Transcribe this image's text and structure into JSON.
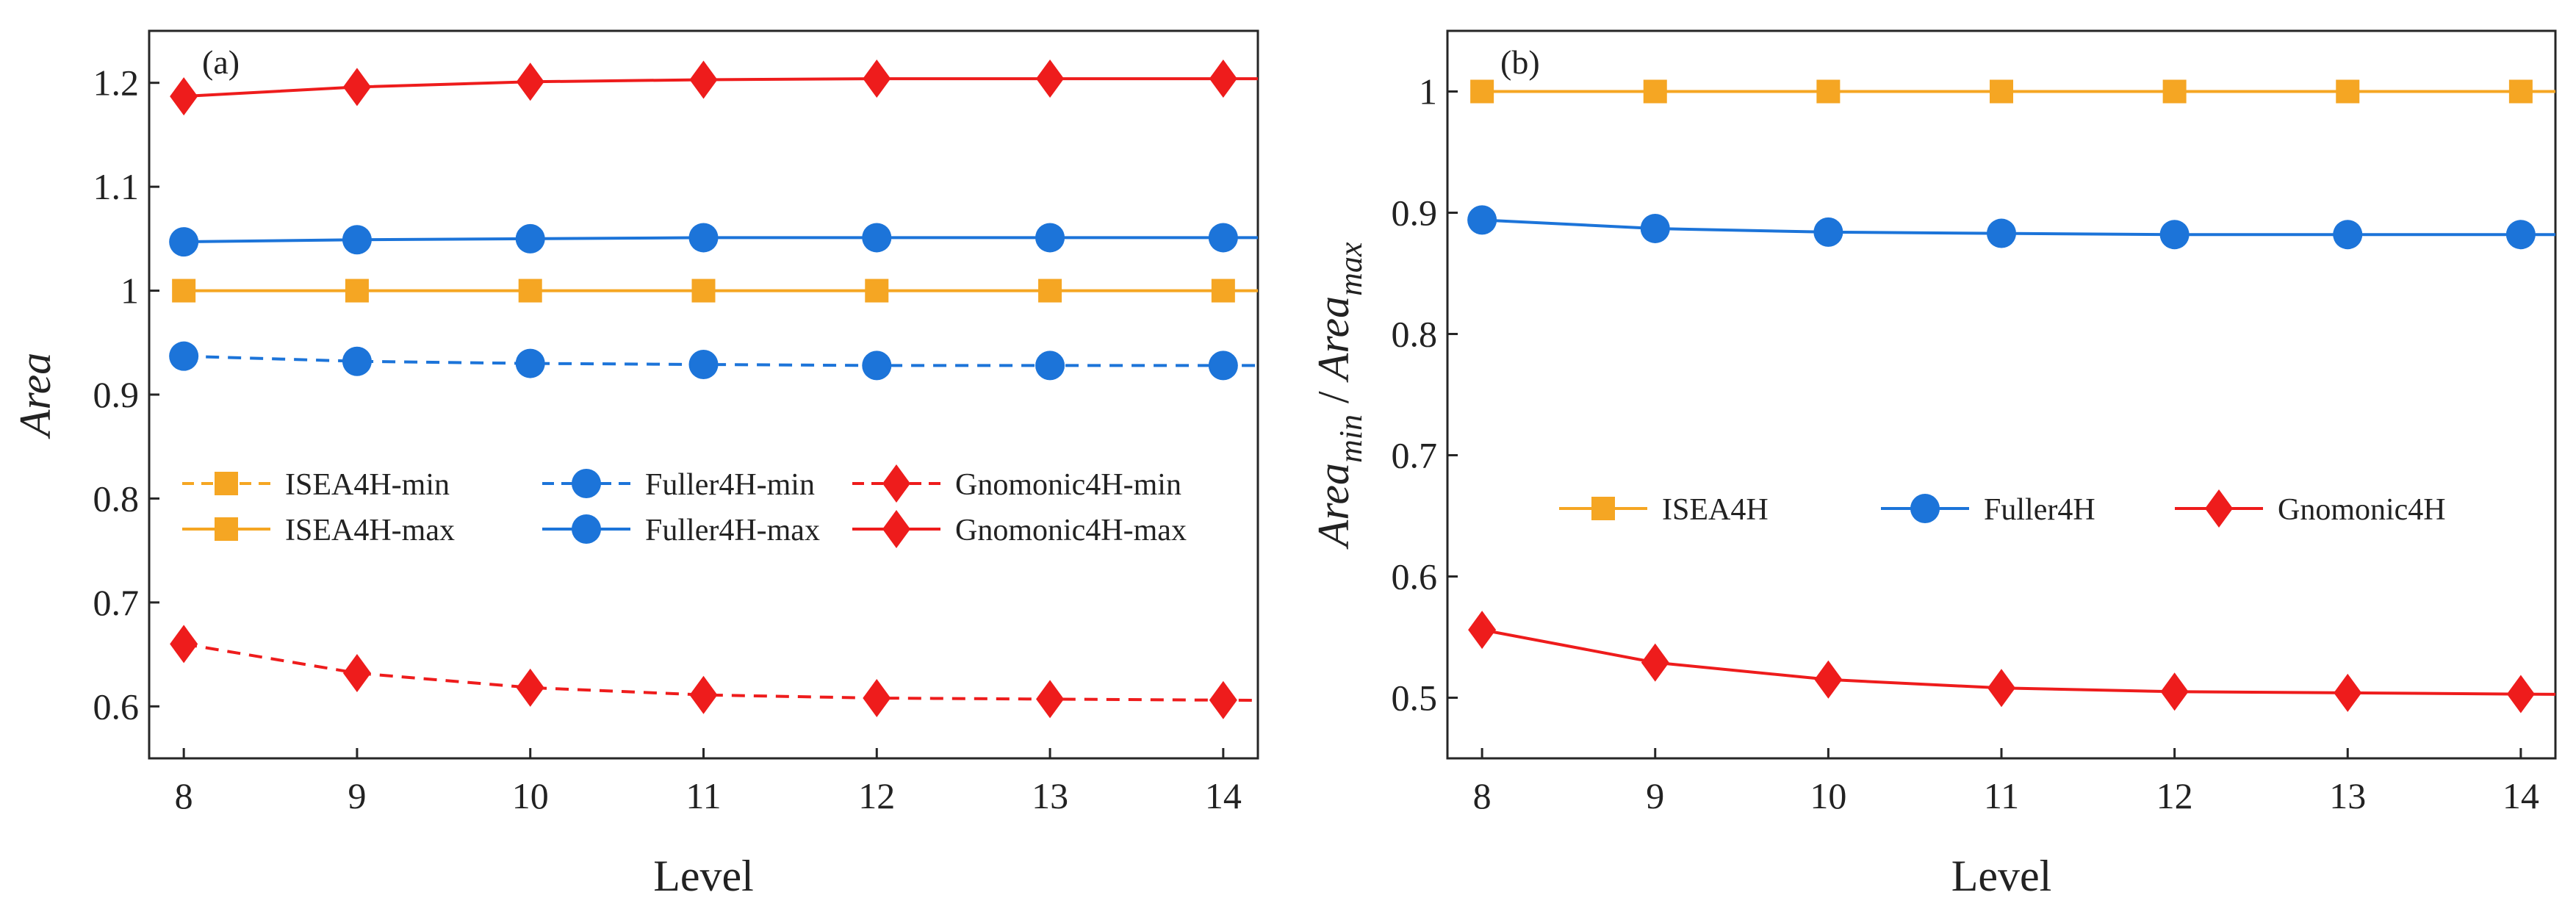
{
  "figure": {
    "description_none": ""
  },
  "chart_data": [
    {
      "type": "line",
      "panel_label": "(a)",
      "xlabel": "Level",
      "ylabel": "Area",
      "xlim": [
        7.8,
        14.2
      ],
      "ylim": [
        0.55,
        1.25
      ],
      "xticks": [
        8,
        9,
        10,
        11,
        12,
        13,
        14
      ],
      "xtick_labels": [
        "8",
        "9",
        "10",
        "11",
        "12",
        "13",
        "14"
      ],
      "yticks": [
        0.6,
        0.7,
        0.8,
        0.9,
        1.0,
        1.1,
        1.2
      ],
      "ytick_labels": [
        "0.6",
        "0.7",
        "0.8",
        "0.9",
        "1",
        "1.1",
        "1.2"
      ],
      "legend_position": "center",
      "legend_columns": 3,
      "x": [
        8,
        9,
        10,
        11,
        12,
        13,
        14
      ],
      "series": [
        {
          "name": "ISEA4H-min",
          "color": "#F5A623",
          "dash": "dashed",
          "marker": "square",
          "values": [
            1.0,
            1.0,
            1.0,
            1.0,
            1.0,
            1.0,
            1.0
          ],
          "hidden": true
        },
        {
          "name": "Fuller4H-min",
          "color": "#1C74D9",
          "dash": "dashed",
          "marker": "circle",
          "values": [
            0.937,
            0.932,
            0.93,
            0.929,
            0.928,
            0.928,
            0.928
          ]
        },
        {
          "name": "Gnomonic4H-min",
          "color": "#EE1C1C",
          "dash": "dashed",
          "marker": "diamond",
          "values": [
            0.66,
            0.632,
            0.618,
            0.611,
            0.608,
            0.607,
            0.606
          ]
        },
        {
          "name": "ISEA4H-max",
          "color": "#F5A623",
          "dash": "solid",
          "marker": "square",
          "values": [
            1.0,
            1.0,
            1.0,
            1.0,
            1.0,
            1.0,
            1.0
          ]
        },
        {
          "name": "Fuller4H-max",
          "color": "#1C74D9",
          "dash": "solid",
          "marker": "circle",
          "values": [
            1.047,
            1.049,
            1.05,
            1.051,
            1.051,
            1.051,
            1.051
          ]
        },
        {
          "name": "Gnomonic4H-max",
          "color": "#EE1C1C",
          "dash": "solid",
          "marker": "diamond",
          "values": [
            1.187,
            1.196,
            1.201,
            1.203,
            1.204,
            1.204,
            1.204
          ]
        }
      ]
    },
    {
      "type": "line",
      "panel_label": "(b)",
      "xlabel": "Level",
      "ylabel_parts": {
        "base1": "Area",
        "sub1": "min",
        "sep": " / ",
        "base2": "Area",
        "sub2": "max"
      },
      "xlim": [
        7.8,
        14.2
      ],
      "ylim": [
        0.45,
        1.05
      ],
      "xticks": [
        8,
        9,
        10,
        11,
        12,
        13,
        14
      ],
      "xtick_labels": [
        "8",
        "9",
        "10",
        "11",
        "12",
        "13",
        "14"
      ],
      "yticks": [
        0.5,
        0.6,
        0.7,
        0.8,
        0.9,
        1.0
      ],
      "ytick_labels": [
        "0.5",
        "0.6",
        "0.7",
        "0.8",
        "0.9",
        "1"
      ],
      "legend_position": "center",
      "legend_columns": 3,
      "x": [
        8,
        9,
        10,
        11,
        12,
        13,
        14
      ],
      "series": [
        {
          "name": "ISEA4H",
          "color": "#F5A623",
          "dash": "solid",
          "marker": "square",
          "values": [
            1.0,
            1.0,
            1.0,
            1.0,
            1.0,
            1.0,
            1.0
          ]
        },
        {
          "name": "Fuller4H",
          "color": "#1C74D9",
          "dash": "solid",
          "marker": "circle",
          "values": [
            0.894,
            0.887,
            0.884,
            0.883,
            0.882,
            0.882,
            0.882
          ]
        },
        {
          "name": "Gnomonic4H",
          "color": "#EE1C1C",
          "dash": "solid",
          "marker": "diamond",
          "values": [
            0.556,
            0.529,
            0.515,
            0.508,
            0.505,
            0.504,
            0.503
          ]
        }
      ]
    }
  ]
}
